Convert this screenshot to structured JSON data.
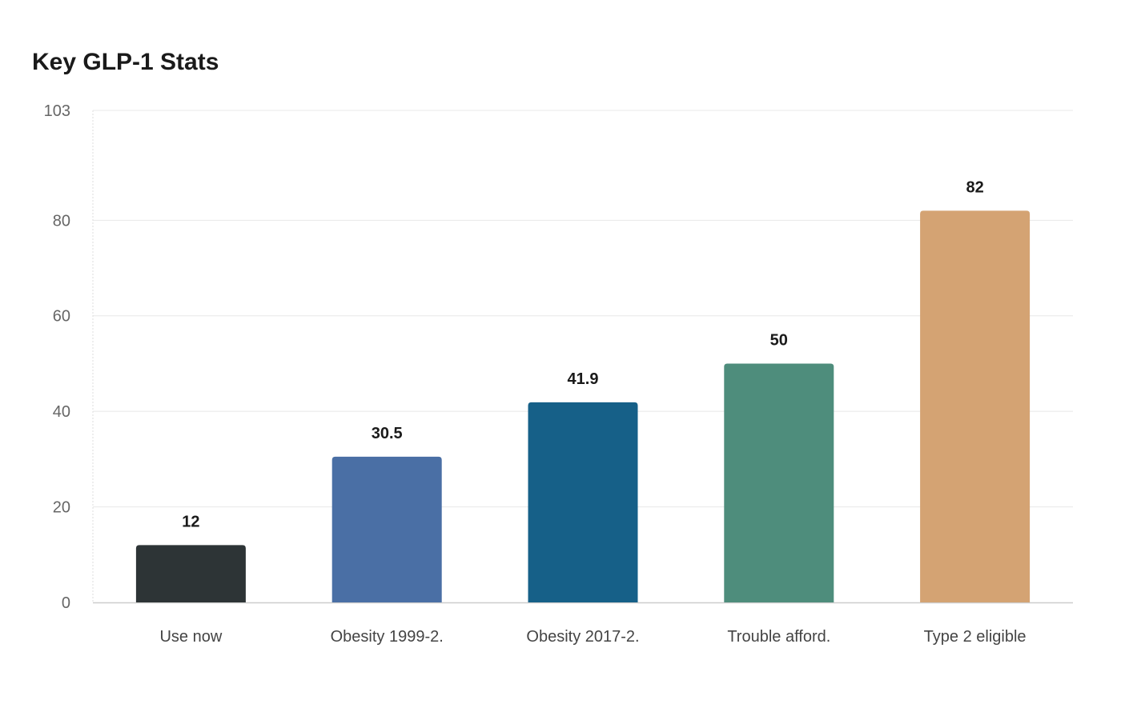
{
  "chart_data": {
    "type": "bar",
    "title": "Key GLP-1 Stats",
    "xlabel": "",
    "ylabel": "",
    "categories": [
      "Use now",
      "Obesity 1999-2.",
      "Obesity 2017-2.",
      "Trouble afford.",
      "Type 2 eligible"
    ],
    "values": [
      12,
      30.5,
      41.9,
      50,
      82
    ],
    "value_labels": [
      "12",
      "30.5",
      "41.9",
      "50",
      "82"
    ],
    "colors": [
      "#2d3436",
      "#4a6fa5",
      "#166088",
      "#4e8d7c",
      "#d4a373"
    ],
    "ylim": [
      0,
      103
    ],
    "yticks": [
      0,
      20,
      40,
      60,
      80,
      103
    ],
    "grid": true,
    "legend": "none"
  }
}
